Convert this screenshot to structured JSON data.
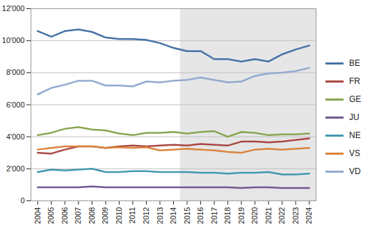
{
  "chart_data": {
    "type": "line",
    "x": [
      2004,
      2005,
      2006,
      2007,
      2008,
      2009,
      2010,
      2011,
      2012,
      2013,
      2014,
      2015,
      2016,
      2017,
      2018,
      2019,
      2020,
      2021,
      2022,
      2023,
      2024
    ],
    "xlim": [
      2003.5,
      2024.5
    ],
    "xticks": [
      2004,
      2005,
      2006,
      2007,
      2008,
      2009,
      2010,
      2011,
      2012,
      2013,
      2014,
      2015,
      2016,
      2017,
      2018,
      2019,
      2020,
      2021,
      2022,
      2023,
      2024
    ],
    "ylim": [
      0,
      12000
    ],
    "yticks": [
      {
        "value": 0,
        "label": "0"
      },
      {
        "value": 2000,
        "label": "2'000"
      },
      {
        "value": 4000,
        "label": "4'000"
      },
      {
        "value": 6000,
        "label": "6'000"
      },
      {
        "value": 8000,
        "label": "8'000"
      },
      {
        "value": 10000,
        "label": "10'000"
      },
      {
        "value": 12000,
        "label": "12'000"
      }
    ],
    "grid": true,
    "legend": "right",
    "highlight": [
      2014.5,
      2024.5
    ],
    "series": [
      {
        "name": "BE",
        "color": "#4572a7",
        "values": [
          10600,
          10250,
          10600,
          10700,
          10550,
          10200,
          10100,
          10100,
          10050,
          9850,
          9550,
          9350,
          9350,
          8850,
          8850,
          8700,
          8850,
          8700,
          9150,
          9450,
          9700
        ]
      },
      {
        "name": "FR",
        "color": "#aa4643",
        "values": [
          3000,
          2950,
          3200,
          3400,
          3400,
          3300,
          3400,
          3450,
          3400,
          3450,
          3500,
          3450,
          3550,
          3500,
          3450,
          3700,
          3700,
          3650,
          3700,
          3800,
          3900
        ]
      },
      {
        "name": "GE",
        "color": "#89a54e",
        "values": [
          4100,
          4250,
          4500,
          4600,
          4450,
          4400,
          4200,
          4100,
          4250,
          4250,
          4300,
          4200,
          4300,
          4350,
          4000,
          4300,
          4250,
          4100,
          4150,
          4150,
          4200
        ]
      },
      {
        "name": "JU",
        "color": "#71588f",
        "values": [
          850,
          850,
          850,
          850,
          900,
          850,
          850,
          850,
          850,
          850,
          850,
          850,
          850,
          850,
          850,
          800,
          850,
          850,
          800,
          800,
          800
        ]
      },
      {
        "name": "NE",
        "color": "#4198af",
        "values": [
          1800,
          1950,
          1900,
          1950,
          2000,
          1800,
          1800,
          1850,
          1850,
          1800,
          1800,
          1800,
          1750,
          1750,
          1700,
          1750,
          1750,
          1800,
          1650,
          1650,
          1700
        ]
      },
      {
        "name": "VS",
        "color": "#db843d",
        "values": [
          3200,
          3300,
          3400,
          3400,
          3400,
          3300,
          3350,
          3300,
          3350,
          3150,
          3200,
          3250,
          3200,
          3150,
          3050,
          3000,
          3200,
          3250,
          3200,
          3250,
          3300
        ]
      },
      {
        "name": "VD",
        "color": "#93a9cf",
        "values": [
          6650,
          7050,
          7250,
          7500,
          7500,
          7200,
          7200,
          7150,
          7450,
          7400,
          7500,
          7550,
          7700,
          7550,
          7400,
          7450,
          7800,
          7950,
          8000,
          8100,
          8300
        ]
      }
    ]
  }
}
